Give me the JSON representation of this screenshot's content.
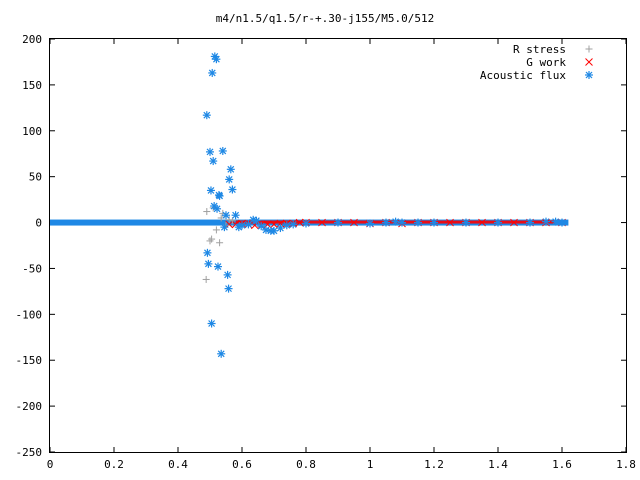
{
  "chart_data": {
    "type": "scatter",
    "title": "m4/n1.5/q1.5/r-+.30-j155/M5.0/512",
    "xlabel": "",
    "ylabel": "",
    "xlim": [
      0,
      1.8
    ],
    "ylim": [
      -250,
      200
    ],
    "x_ticks": [
      "0",
      "0.2",
      "0.4",
      "0.6",
      "0.8",
      "1",
      "1.2",
      "1.4",
      "1.6",
      "1.8"
    ],
    "x_tick_values": [
      0,
      0.2,
      0.4,
      0.6,
      0.8,
      1.0,
      1.2,
      1.4,
      1.6,
      1.8
    ],
    "y_ticks": [
      "200",
      "150",
      "100",
      "50",
      "0",
      "-50",
      "-100",
      "-150",
      "-200",
      "-250"
    ],
    "y_tick_values": [
      200,
      150,
      100,
      50,
      0,
      -50,
      -100,
      -150,
      -200,
      -250
    ],
    "grid": false,
    "legend_position": "top-right",
    "series": [
      {
        "name": "R stress",
        "marker": "plus",
        "color": "#a0a0a0",
        "x": [
          0.488,
          0.49,
          0.5,
          0.505,
          0.51,
          0.52,
          0.53,
          0.535,
          0.54,
          0.55,
          0.56,
          0.57
        ],
        "y": [
          -62,
          12,
          -20,
          -18,
          16,
          -8,
          -22,
          5,
          10,
          -3,
          3,
          2
        ]
      },
      {
        "name": "G work",
        "marker": "cross",
        "color": "#ff0000",
        "x": [
          0.56,
          0.58,
          0.6,
          0.62,
          0.64,
          0.66,
          0.68,
          0.7,
          0.72,
          0.74,
          0.76,
          0.78,
          0.8,
          0.85,
          0.9,
          0.95,
          1.0,
          1.05,
          1.1,
          1.15,
          1.2,
          1.25,
          1.3,
          1.35,
          1.4,
          1.45,
          1.5,
          1.55,
          1.6
        ],
        "y": [
          -2,
          -2,
          -1,
          -2,
          -3,
          -3,
          -2,
          -2,
          -1,
          -1,
          -1,
          0,
          0,
          0,
          0,
          0,
          -1,
          0,
          -1,
          0,
          0,
          0,
          0,
          0,
          0,
          0,
          0,
          0,
          0
        ]
      },
      {
        "name": "Acoustic flux",
        "marker": "star",
        "color": "#1e88e5",
        "x": [
          0.49,
          0.492,
          0.495,
          0.5,
          0.503,
          0.505,
          0.507,
          0.51,
          0.513,
          0.515,
          0.52,
          0.522,
          0.525,
          0.528,
          0.53,
          0.535,
          0.54,
          0.545,
          0.55,
          0.555,
          0.558,
          0.56,
          0.565,
          0.57,
          0.58,
          0.59,
          0.6,
          0.62,
          0.635,
          0.645,
          0.66,
          0.675,
          0.69,
          0.7,
          0.72,
          0.74,
          0.76,
          0.8,
          0.9,
          1.0,
          1.05,
          1.08,
          1.1,
          1.15,
          1.2,
          1.3,
          1.4,
          1.5,
          1.55,
          1.58,
          1.6
        ],
        "y": [
          117,
          -33,
          -45,
          77,
          35,
          -110,
          163,
          67,
          18,
          181,
          178,
          15,
          -48,
          30,
          29,
          -143,
          78,
          -5,
          8,
          -57,
          -72,
          47,
          58,
          36,
          8,
          -5,
          -3,
          -2,
          3,
          2,
          -4,
          -8,
          -9,
          -9,
          -6,
          -3,
          -2,
          -1,
          0,
          -1,
          0,
          1,
          0,
          0,
          0,
          0,
          0,
          0,
          1,
          1,
          0
        ]
      }
    ]
  }
}
